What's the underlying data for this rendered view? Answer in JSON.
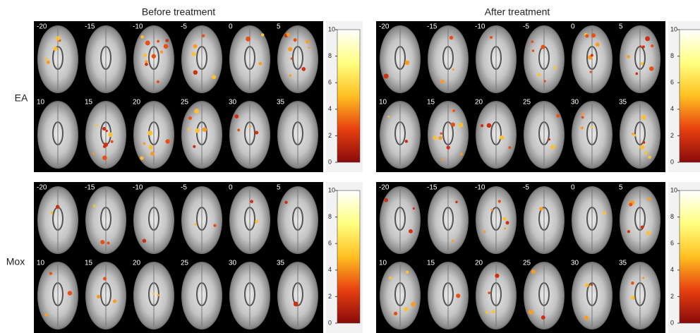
{
  "columns": [
    "Before treatment",
    "After treatment"
  ],
  "rows": [
    "EA",
    "Mox"
  ],
  "slices": [
    -20,
    -15,
    -10,
    -5,
    0,
    5,
    10,
    15,
    20,
    25,
    30,
    35
  ],
  "colorbar": {
    "ticks": [
      0,
      2,
      4,
      6,
      8,
      10
    ]
  }
}
